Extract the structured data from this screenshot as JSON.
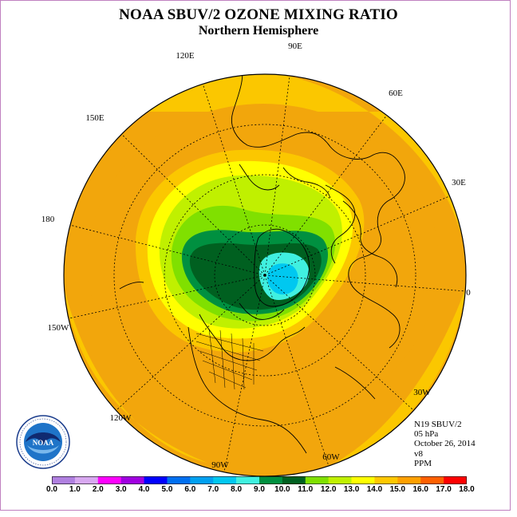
{
  "title": "NOAA SBUV/2 OZONE MIXING RATIO",
  "subtitle": "Northern Hemisphere",
  "info": {
    "satellite": "N19 SBUV/2",
    "pressure": "05 hPa",
    "date": "October 26, 2014",
    "version": "v8",
    "units": "PPM"
  },
  "longitude_labels": [
    "90E",
    "60E",
    "30E",
    "0",
    "30W",
    "60W",
    "90W",
    "120W",
    "150W",
    "180",
    "150E",
    "120E"
  ],
  "logo_text": "NOAA",
  "colorbar": {
    "ticks": [
      "0.0",
      "1.0",
      "2.0",
      "3.0",
      "4.0",
      "5.0",
      "6.0",
      "7.0",
      "8.0",
      "9.0",
      "10.0",
      "11.0",
      "12.0",
      "13.0",
      "14.0",
      "15.0",
      "16.0",
      "17.0",
      "18.0"
    ],
    "colors": [
      "#b080e0",
      "#d8a8f0",
      "#ff00ff",
      "#a000e0",
      "#0000ff",
      "#0070f0",
      "#00a0f0",
      "#00c8f0",
      "#40f0e0",
      "#009040",
      "#006020",
      "#80e000",
      "#c0f000",
      "#ffff00",
      "#ffc800",
      "#ffa000",
      "#ff6000",
      "#ff0000",
      "#a02000",
      "#906040"
    ]
  },
  "colors": {
    "orange_field": "#f2a60c",
    "light_orange": "#fbc700",
    "yellow": "#ffff00",
    "yellow_green": "#c0f000",
    "green_light": "#80e000",
    "green_mid": "#009040",
    "green_dark": "#006020",
    "aqua": "#40f0e0",
    "cyan": "#00c8f0"
  }
}
